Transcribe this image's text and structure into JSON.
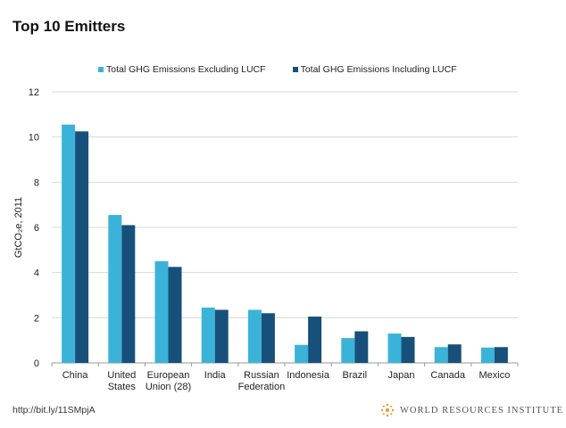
{
  "header": {
    "title": "Top 10 Emitters"
  },
  "colors": {
    "excluding": "#3bb3d9",
    "including": "#17507a",
    "grid": "#d9d9d9",
    "axis": "#999999"
  },
  "chart_data": {
    "type": "bar",
    "title": "Top 10 Emitters",
    "ylabel": "GtCO₂e, 2011",
    "ylim": [
      0,
      12
    ],
    "yticks": [
      0,
      2,
      4,
      6,
      8,
      10,
      12
    ],
    "legend_position": "top",
    "categories": [
      [
        "China"
      ],
      [
        "United",
        "States"
      ],
      [
        "European",
        "Union (28)"
      ],
      [
        "India"
      ],
      [
        "Russian",
        "Federation"
      ],
      [
        "Indonesia"
      ],
      [
        "Brazil"
      ],
      [
        "Japan"
      ],
      [
        "Canada"
      ],
      [
        "Mexico"
      ]
    ],
    "series": [
      {
        "name": "Total GHG Emissions Excluding LUCF",
        "values": [
          10.55,
          6.55,
          4.5,
          2.45,
          2.35,
          0.8,
          1.1,
          1.3,
          0.7,
          0.68
        ]
      },
      {
        "name": "Total GHG Emissions Including LUCF",
        "values": [
          10.25,
          6.1,
          4.25,
          2.35,
          2.2,
          2.05,
          1.4,
          1.15,
          0.82,
          0.7
        ]
      }
    ]
  },
  "footer": {
    "link": "http://bit.ly/11SMpjA",
    "org": "WORLD RESOURCES INSTITUTE"
  }
}
